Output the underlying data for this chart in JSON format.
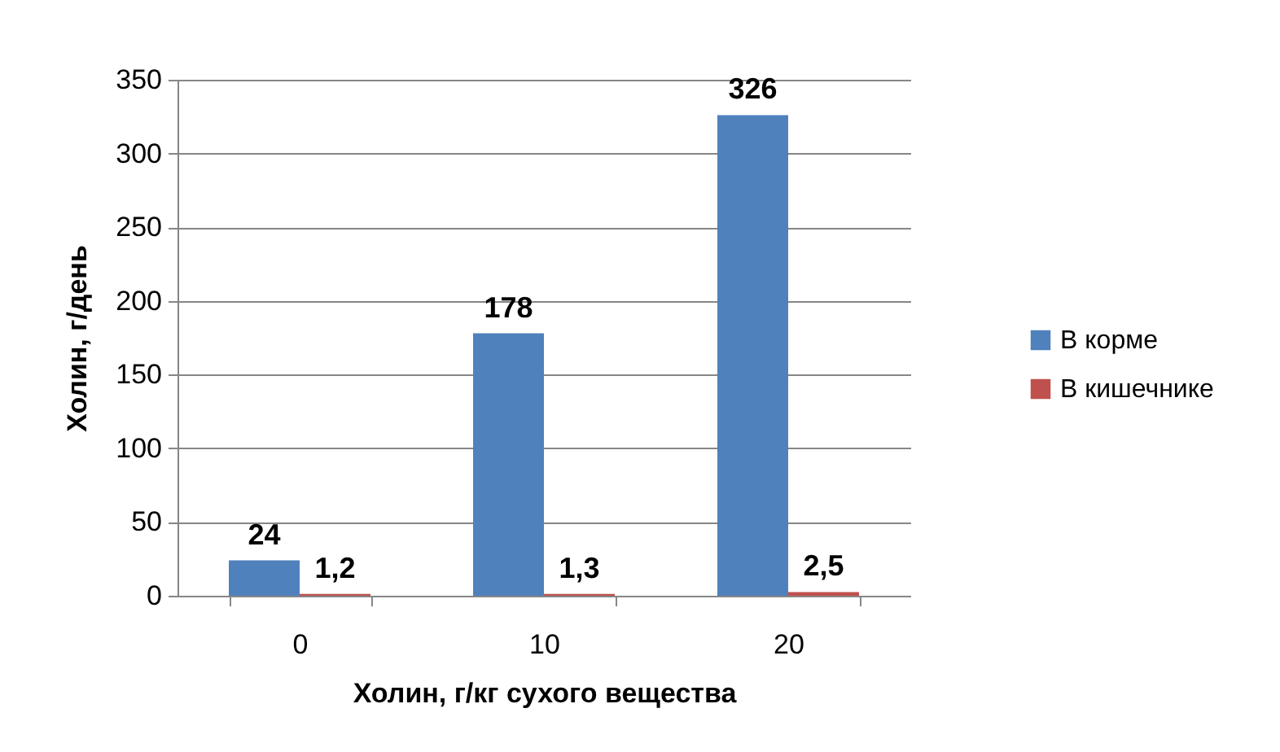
{
  "chart_data": {
    "type": "bar",
    "xlabel": "Холин, г/кг  сухого вещества",
    "ylabel": "Холин, г/день",
    "categories": [
      "0",
      "10",
      "20"
    ],
    "series": [
      {
        "name": "В корме",
        "color": "#4f81bd",
        "values": [
          24,
          178,
          326
        ],
        "value_labels": [
          "24",
          "178",
          "326"
        ]
      },
      {
        "name": "В кишечнике",
        "color": "#c0504d",
        "values": [
          1.2,
          1.3,
          2.5
        ],
        "value_labels": [
          "1,2",
          "1,3",
          "2,5"
        ]
      }
    ],
    "ylim": [
      0,
      350
    ],
    "yticks": [
      0,
      50,
      100,
      150,
      200,
      250,
      300,
      350
    ],
    "grid": "y",
    "legend": "right"
  }
}
